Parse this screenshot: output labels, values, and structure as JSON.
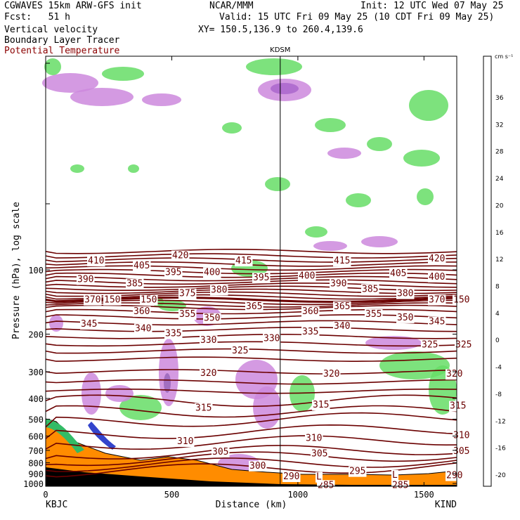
{
  "header": {
    "model": "CGWAVES 15km ARW-GFS init",
    "fcst": "Fcst:   51 h",
    "line3": "Vertical velocity",
    "line4": "Boundary Layer Tracer",
    "line5": "Potential Temperature",
    "org": "NCAR/MMM",
    "init": "Init: 12 UTC Wed 07 May 25",
    "valid": "Valid: 15 UTC Fri 09 May 25 (10 CDT Fri 09 May 25)",
    "xy": "XY= 150.5,136.9 to 260.4,139.6"
  },
  "colors": {
    "theta_line": "#6b0000",
    "terrain": "#ff8c00",
    "positive_w": "#66dd66",
    "negative_w": "#cc88dd"
  },
  "chart_data": {
    "type": "cross-section",
    "marker_label": "KDSM",
    "marker_km": 930,
    "xlabel": "Distance (km)",
    "ylabel": "Pressure (hPa), log scale",
    "xlim": [
      0,
      1630
    ],
    "x_ticks": [
      0,
      500,
      1000,
      1500
    ],
    "y_ticks": [
      100,
      200,
      300,
      400,
      500,
      600,
      700,
      800,
      900,
      1000
    ],
    "left_station": "KBJC",
    "right_station": "KIND",
    "colorbar": {
      "units": "cm s⁻¹",
      "levels": [
        36,
        32,
        28,
        24,
        20,
        16,
        12,
        8,
        4,
        0,
        -4,
        -8,
        -12,
        -16,
        -20
      ],
      "colors": [
        "#ff0000",
        "#ff3300",
        "#ff6600",
        "#ff8c00",
        "#ffb000",
        "#ffdd00",
        "#ffff00",
        "#ccff00",
        "#66dd66",
        "#44cc44",
        "#aaffaa",
        "#ffffff",
        "#eeaaee",
        "#cc88dd",
        "#9955bb",
        "#6622aa",
        "#550088",
        "#4422aa",
        "#3333cc",
        "#6666ee",
        "#9999ff"
      ]
    },
    "theta_labels": [
      {
        "v": "410",
        "x": 105,
        "p": 90
      },
      {
        "v": "420",
        "x": 225,
        "p": 85
      },
      {
        "v": "415",
        "x": 315,
        "p": 90
      },
      {
        "v": "415",
        "x": 455,
        "p": 90
      },
      {
        "v": "420",
        "x": 590,
        "p": 88
      },
      {
        "v": "405",
        "x": 170,
        "p": 95
      },
      {
        "v": "395",
        "x": 215,
        "p": 102
      },
      {
        "v": "400",
        "x": 270,
        "p": 102
      },
      {
        "v": "395",
        "x": 340,
        "p": 108
      },
      {
        "v": "400",
        "x": 405,
        "p": 106
      },
      {
        "v": "405",
        "x": 535,
        "p": 103
      },
      {
        "v": "400",
        "x": 590,
        "p": 107
      },
      {
        "v": "390",
        "x": 90,
        "p": 110
      },
      {
        "v": "385",
        "x": 160,
        "p": 115
      },
      {
        "v": "380",
        "x": 280,
        "p": 123
      },
      {
        "v": "390",
        "x": 450,
        "p": 115
      },
      {
        "v": "385",
        "x": 495,
        "p": 122
      },
      {
        "v": "375",
        "x": 235,
        "p": 128
      },
      {
        "v": "380",
        "x": 545,
        "p": 128
      },
      {
        "v": "370",
        "x": 100,
        "p": 137
      },
      {
        "v": "150",
        "x": 128,
        "p": 137
      },
      {
        "v": "150",
        "x": 180,
        "p": 137
      },
      {
        "v": "370",
        "x": 590,
        "p": 137
      },
      {
        "v": "150",
        "x": 625,
        "p": 137
      },
      {
        "v": "365",
        "x": 330,
        "p": 147
      },
      {
        "v": "365",
        "x": 455,
        "p": 147
      },
      {
        "v": "360",
        "x": 170,
        "p": 155
      },
      {
        "v": "360",
        "x": 410,
        "p": 155
      },
      {
        "v": "355",
        "x": 235,
        "p": 160
      },
      {
        "v": "355",
        "x": 500,
        "p": 160
      },
      {
        "v": "350",
        "x": 270,
        "p": 167
      },
      {
        "v": "350",
        "x": 545,
        "p": 166
      },
      {
        "v": "345",
        "x": 95,
        "p": 178
      },
      {
        "v": "345",
        "x": 590,
        "p": 173
      },
      {
        "v": "340",
        "x": 172,
        "p": 187
      },
      {
        "v": "340",
        "x": 455,
        "p": 182
      },
      {
        "v": "335",
        "x": 215,
        "p": 197
      },
      {
        "v": "335",
        "x": 410,
        "p": 193
      },
      {
        "v": "330",
        "x": 265,
        "p": 212
      },
      {
        "v": "330",
        "x": 355,
        "p": 208
      },
      {
        "v": "325",
        "x": 310,
        "p": 237
      },
      {
        "v": "325",
        "x": 580,
        "p": 222
      },
      {
        "v": "325",
        "x": 628,
        "p": 222
      },
      {
        "v": "320",
        "x": 265,
        "p": 302
      },
      {
        "v": "320",
        "x": 440,
        "p": 305
      },
      {
        "v": "320",
        "x": 615,
        "p": 305
      },
      {
        "v": "315",
        "x": 258,
        "p": 440
      },
      {
        "v": "315",
        "x": 425,
        "p": 425
      },
      {
        "v": "315",
        "x": 620,
        "p": 430
      },
      {
        "v": "310",
        "x": 232,
        "p": 630
      },
      {
        "v": "310",
        "x": 415,
        "p": 610
      },
      {
        "v": "310",
        "x": 625,
        "p": 590
      },
      {
        "v": "305",
        "x": 282,
        "p": 705
      },
      {
        "v": "305",
        "x": 423,
        "p": 720
      },
      {
        "v": "305",
        "x": 625,
        "p": 700
      },
      {
        "v": "300",
        "x": 335,
        "p": 820
      },
      {
        "v": "295",
        "x": 477,
        "p": 870
      },
      {
        "v": "290",
        "x": 383,
        "p": 920
      },
      {
        "v": "290",
        "x": 615,
        "p": 910
      },
      {
        "v": "285",
        "x": 432,
        "p": 1010
      },
      {
        "v": "285",
        "x": 538,
        "p": 1010
      },
      {
        "v": "L",
        "x": 430,
        "p": 925
      },
      {
        "v": "L",
        "x": 538,
        "p": 905
      }
    ]
  }
}
